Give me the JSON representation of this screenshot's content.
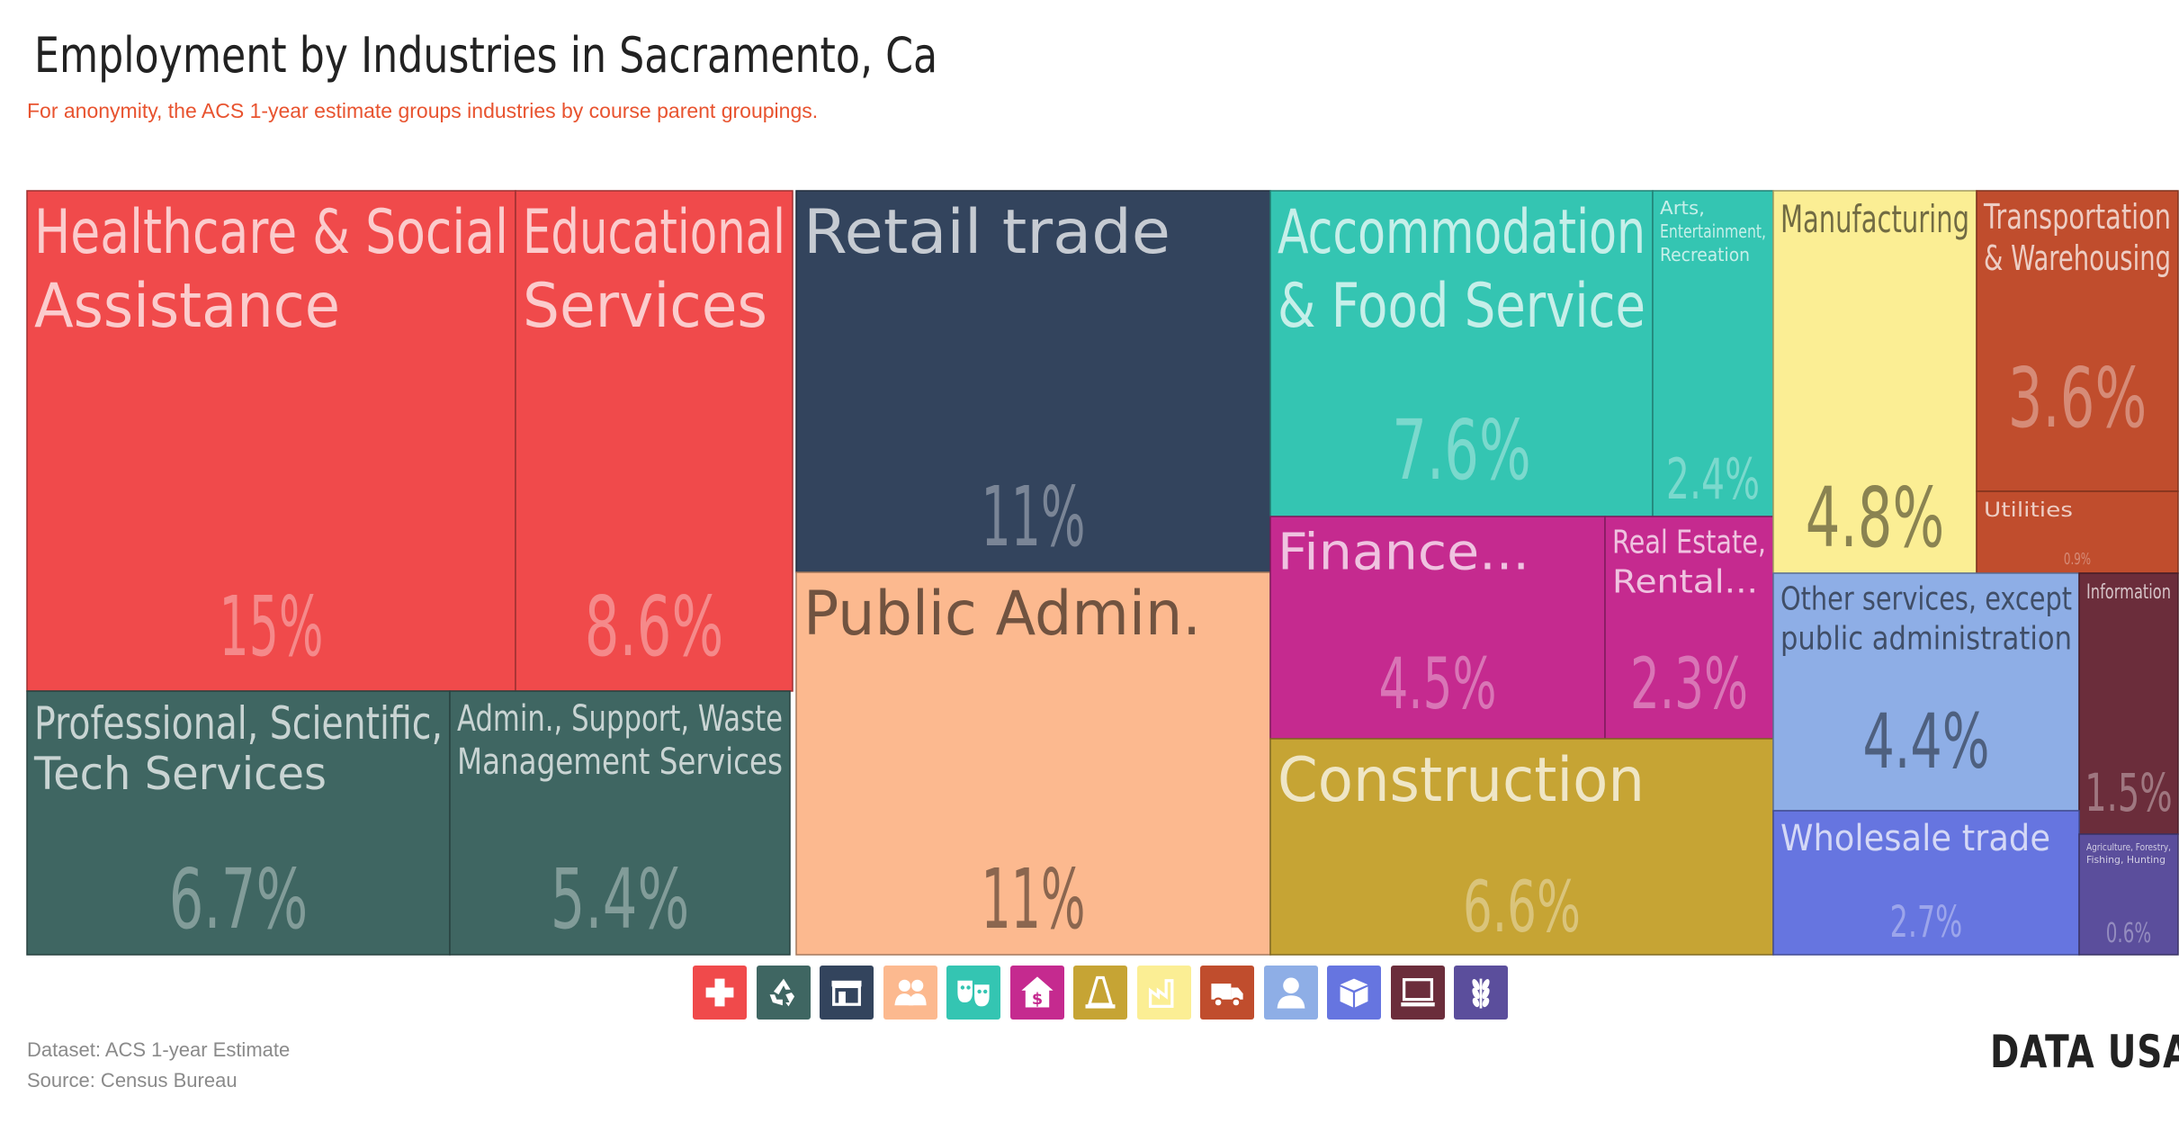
{
  "title": "Employment by Industries in Sacramento, Ca",
  "subtitle": "For anonymity, the ACS 1-year estimate groups industries by course parent groupings.",
  "chart_data": {
    "type": "treemap",
    "tiles": [
      {
        "id": "healthcare",
        "label": "Healthcare & Social Assistance",
        "lines": [
          "Healthcare & Social",
          "Assistance"
        ],
        "value_label": "15%",
        "value": 15,
        "color": "#f04a4b"
      },
      {
        "id": "educational",
        "label": "Educational Services",
        "lines": [
          "Educational",
          "Services"
        ],
        "value_label": "8.6%",
        "value": 8.6,
        "color": "#f04a4b"
      },
      {
        "id": "professional",
        "label": "Professional, Scientific, Tech Services",
        "lines": [
          "Professional, Scientific,",
          "Tech Services"
        ],
        "value_label": "6.7%",
        "value": 6.7,
        "color": "#3f6662"
      },
      {
        "id": "admin-support",
        "label": "Admin., Support, Waste Management Services",
        "lines": [
          "Admin., Support, Waste",
          "Management Services"
        ],
        "value_label": "5.4%",
        "value": 5.4,
        "color": "#3f6662"
      },
      {
        "id": "retail",
        "label": "Retail trade",
        "lines": [
          "Retail trade"
        ],
        "value_label": "11%",
        "value": 11,
        "color": "#33445d"
      },
      {
        "id": "public-admin",
        "label": "Public Admin.",
        "lines": [
          "Public Admin."
        ],
        "value_label": "11%",
        "value": 11,
        "color": "#fcb98f"
      },
      {
        "id": "accommodation",
        "label": "Accommodation & Food Service",
        "lines": [
          "Accommodation",
          "& Food Service"
        ],
        "value_label": "7.6%",
        "value": 7.6,
        "color": "#34c5b2"
      },
      {
        "id": "arts",
        "label": "Arts, Entertainment, Recreation",
        "lines": [
          "Arts,",
          "Entertainment,",
          "Recreation"
        ],
        "value_label": "2.4%",
        "value": 2.4,
        "color": "#34c5b2"
      },
      {
        "id": "finance",
        "label": "Finance...",
        "lines": [
          "Finance..."
        ],
        "value_label": "4.5%",
        "value": 4.5,
        "color": "#c52a8f"
      },
      {
        "id": "real-estate",
        "label": "Real Estate, Rental...",
        "lines": [
          "Real Estate,",
          "Rental..."
        ],
        "value_label": "2.3%",
        "value": 2.3,
        "color": "#c52a8f"
      },
      {
        "id": "construction",
        "label": "Construction",
        "lines": [
          "Construction"
        ],
        "value_label": "6.6%",
        "value": 6.6,
        "color": "#c6a434"
      },
      {
        "id": "manufacturing",
        "label": "Manufacturing",
        "lines": [
          "Manufacturing"
        ],
        "value_label": "4.8%",
        "value": 4.8,
        "color": "#fbee94"
      },
      {
        "id": "transportation",
        "label": "Transportation & Warehousing",
        "lines": [
          "Transportation",
          "& Warehousing"
        ],
        "value_label": "3.6%",
        "value": 3.6,
        "color": "#c04d2d"
      },
      {
        "id": "utilities",
        "label": "Utilities",
        "lines": [
          "Utilities"
        ],
        "value_label": "0.9%",
        "value": 0.9,
        "color": "#c04d2d"
      },
      {
        "id": "other-services",
        "label": "Other services, except public administration",
        "lines": [
          "Other services, except",
          "public administration"
        ],
        "value_label": "4.4%",
        "value": 4.4,
        "color": "#8eaee6"
      },
      {
        "id": "information",
        "label": "Information",
        "lines": [
          "Information"
        ],
        "value_label": "1.5%",
        "value": 1.5,
        "color": "#6b2d3b"
      },
      {
        "id": "wholesale",
        "label": "Wholesale trade",
        "lines": [
          "Wholesale trade"
        ],
        "value_label": "2.7%",
        "value": 2.7,
        "color": "#6675e0"
      },
      {
        "id": "agriculture",
        "label": "Agriculture, Forestry, Fishing, Hunting",
        "lines": [
          "Agriculture, Forestry,",
          "Fishing, Hunting"
        ],
        "value_label": "0.6%",
        "value": 0.6,
        "color": "#5b4e9c"
      }
    ]
  },
  "legend_icons": [
    {
      "name": "health-cross-icon",
      "color": "#f04a4b"
    },
    {
      "name": "recycle-icon",
      "color": "#3f6662"
    },
    {
      "name": "storefront-icon",
      "color": "#33445d"
    },
    {
      "name": "people-icon",
      "color": "#fcb98f"
    },
    {
      "name": "theater-masks-icon",
      "color": "#34c5b2"
    },
    {
      "name": "house-dollar-icon",
      "color": "#c52a8f"
    },
    {
      "name": "traffic-cone-icon",
      "color": "#c6a434"
    },
    {
      "name": "factory-icon",
      "color": "#fbee94"
    },
    {
      "name": "truck-icon",
      "color": "#c04d2d"
    },
    {
      "name": "person-icon",
      "color": "#8eaee6"
    },
    {
      "name": "boxes-icon",
      "color": "#6675e0"
    },
    {
      "name": "computer-icon",
      "color": "#6b2d3b"
    },
    {
      "name": "wheat-icon",
      "color": "#5b4e9c"
    }
  ],
  "footer": {
    "dataset": "Dataset: ACS 1-year Estimate",
    "source": "Source: Census Bureau"
  },
  "brand": "DATA USA:"
}
